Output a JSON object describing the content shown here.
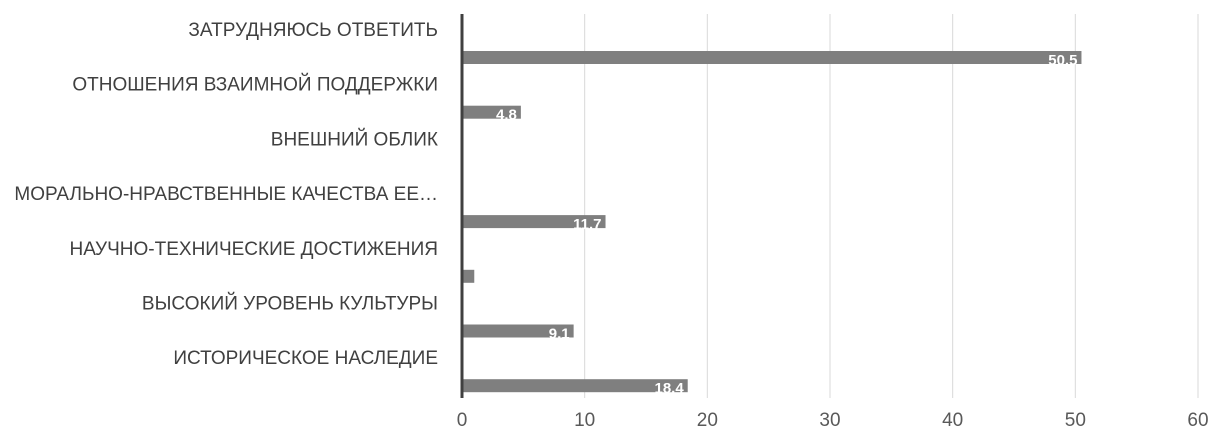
{
  "chart_data": {
    "type": "bar",
    "orientation": "horizontal",
    "categories": [
      "ЗАТРУДНЯЮСЬ ОТВЕТИТЬ",
      "ОТНОШЕНИЯ ВЗАИМНОЙ ПОДДЕРЖКИ",
      "ВНЕШНИЙ ОБЛИК",
      "МОРАЛЬНО-НРАВСТВЕННЫЕ КАЧЕСТВА ЕЕ…",
      "НАУЧНО-ТЕХНИЧЕСКИЕ ДОСТИЖЕНИЯ",
      "ВЫСОКИЙ УРОВЕНЬ КУЛЬТУРЫ",
      "ИСТОРИЧЕСКОЕ НАСЛЕДИЕ"
    ],
    "values": [
      50.5,
      4.8,
      0,
      11.7,
      1.0,
      9.1,
      18.4
    ],
    "data_labels": [
      "50.5",
      "4.8",
      "",
      "11.7",
      "",
      "9.1",
      "18.4"
    ],
    "xlim": [
      0,
      60
    ],
    "xticks": [
      0,
      10,
      20,
      30,
      40,
      50,
      60
    ],
    "xtick_labels": [
      "0",
      "10",
      "20",
      "30",
      "40",
      "50",
      "60"
    ],
    "grid": "vertical",
    "bar_color": "#7f7f7f",
    "title": "",
    "xlabel": "",
    "ylabel": "",
    "legend": "none"
  }
}
